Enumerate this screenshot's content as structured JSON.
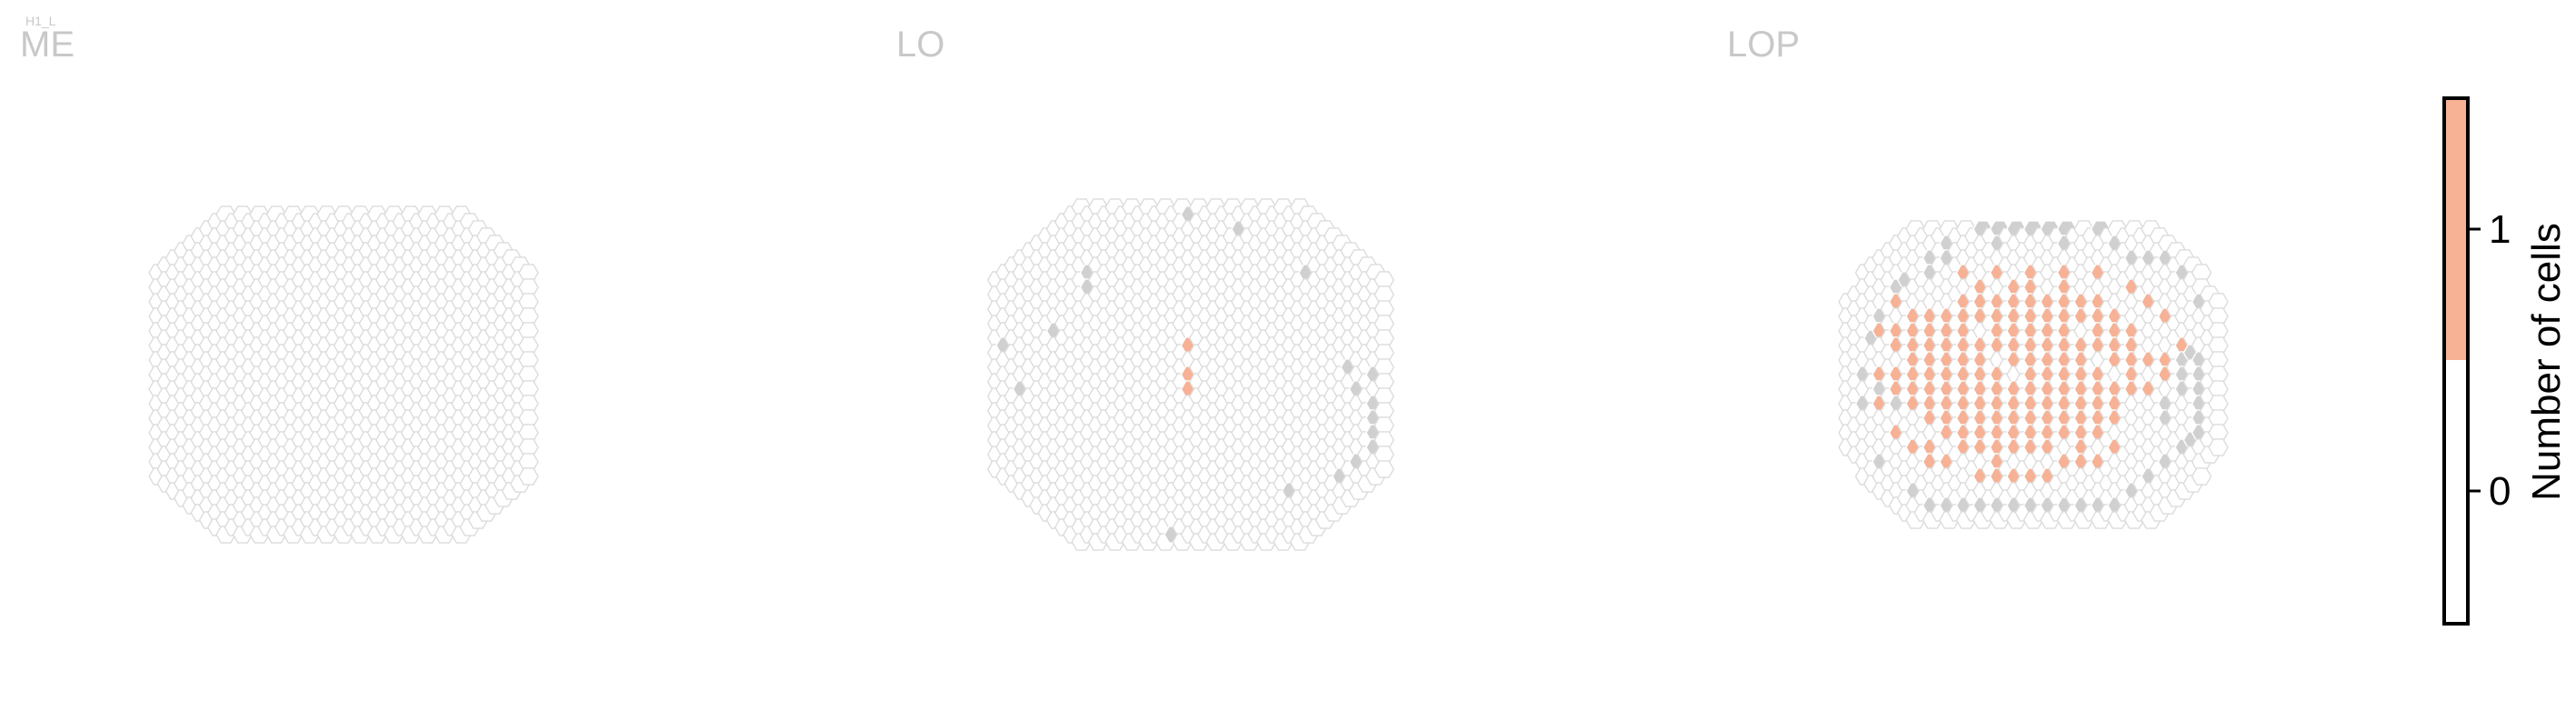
{
  "chart_data": {
    "type": "heatmap",
    "subtitle": "H1_L",
    "panels": [
      {
        "title": "ME",
        "extent": {
          "rmin": -22,
          "rmax": 22,
          "cmin": -22,
          "cmax": 22
        },
        "cutoff": 23.5,
        "gray_cells": [],
        "orange_cells": []
      },
      {
        "title": "LO",
        "extent": {
          "rmin": -23,
          "rmax": 23,
          "cmin": -23,
          "cmax": 23
        },
        "cutoff": 23.5,
        "gray_cells": [
          [
            -22,
            -4
          ],
          [
            -20,
            2
          ],
          [
            -16,
            -6
          ],
          [
            -12,
            -12
          ],
          [
            -12,
            -14
          ],
          [
            0,
            -22
          ],
          [
            6,
            -20
          ],
          [
            14,
            -14
          ],
          [
            19,
            -1
          ],
          [
            20,
            2
          ],
          [
            22,
            0
          ],
          [
            22,
            4
          ],
          [
            22,
            6
          ],
          [
            22,
            8
          ],
          [
            22,
            10
          ],
          [
            20,
            12
          ],
          [
            18,
            14
          ],
          [
            12,
            16
          ],
          [
            -2,
            22
          ]
        ],
        "orange_cells": [
          [
            0,
            -4
          ],
          [
            0,
            0
          ],
          [
            0,
            2
          ]
        ]
      },
      {
        "title": "LOP",
        "extent": {
          "rmin": -20,
          "rmax": 20,
          "cmin": -22,
          "cmax": 22
        },
        "cutoff": 21.8,
        "gray_cells": [
          [
            -20,
            0
          ],
          [
            -20,
            4
          ],
          [
            -19,
            -5
          ],
          [
            -18,
            -8
          ],
          [
            -18,
            2
          ],
          [
            -16,
            -12
          ],
          [
            -16,
            -10
          ],
          [
            -16,
            4
          ],
          [
            -15,
            -13
          ],
          [
            -14,
            -15
          ],
          [
            -14,
            -13
          ],
          [
            -14,
            -11
          ],
          [
            -12,
            -16
          ],
          [
            -12,
            -14
          ],
          [
            -10,
            -16
          ],
          [
            -10,
            -18
          ],
          [
            -6,
            -20
          ],
          [
            -4,
            -18
          ],
          [
            -4,
            -20
          ],
          [
            -2,
            -20
          ],
          [
            0,
            -20
          ],
          [
            2,
            -20
          ],
          [
            4,
            -18
          ],
          [
            4,
            -20
          ],
          [
            8,
            -20
          ],
          [
            10,
            -18
          ],
          [
            12,
            -16
          ],
          [
            14,
            -16
          ],
          [
            16,
            -16
          ],
          [
            18,
            -14
          ],
          [
            20,
            -10
          ],
          [
            -18,
            12
          ],
          [
            -14,
            16
          ],
          [
            -12,
            18
          ],
          [
            -10,
            18
          ],
          [
            -8,
            18
          ],
          [
            -6,
            18
          ],
          [
            -4,
            18
          ],
          [
            -2,
            18
          ],
          [
            0,
            18
          ],
          [
            2,
            18
          ],
          [
            4,
            18
          ],
          [
            6,
            18
          ],
          [
            8,
            18
          ],
          [
            10,
            18
          ],
          [
            12,
            16
          ],
          [
            14,
            14
          ],
          [
            16,
            12
          ],
          [
            18,
            10
          ],
          [
            19,
            9
          ],
          [
            20,
            8
          ],
          [
            20,
            6
          ],
          [
            20,
            4
          ],
          [
            20,
            2
          ],
          [
            20,
            0
          ],
          [
            20,
            -2
          ],
          [
            19,
            -3
          ],
          [
            18,
            -2
          ],
          [
            18,
            0
          ],
          [
            18,
            2
          ],
          [
            16,
            4
          ],
          [
            16,
            6
          ],
          [
            -12,
            -22
          ],
          [
            -12,
            22
          ],
          [
            12,
            -22
          ],
          [
            12,
            22
          ]
        ],
        "orange_cells": [
          [
            -14,
            -6
          ],
          [
            -14,
            -4
          ],
          [
            -14,
            -2
          ],
          [
            -14,
            0
          ],
          [
            -14,
            2
          ],
          [
            -14,
            4
          ],
          [
            -12,
            -8
          ],
          [
            -12,
            -6
          ],
          [
            -12,
            -4
          ],
          [
            -12,
            -2
          ],
          [
            -12,
            0
          ],
          [
            -12,
            2
          ],
          [
            -12,
            4
          ],
          [
            -12,
            6
          ],
          [
            -10,
            -8
          ],
          [
            -10,
            -6
          ],
          [
            -10,
            -2
          ],
          [
            -10,
            0
          ],
          [
            -10,
            2
          ],
          [
            -10,
            4
          ],
          [
            -10,
            6
          ],
          [
            -10,
            8
          ],
          [
            -8,
            -10
          ],
          [
            -8,
            -8
          ],
          [
            -8,
            -6
          ],
          [
            -8,
            -4
          ],
          [
            -8,
            -2
          ],
          [
            -8,
            0
          ],
          [
            -8,
            2
          ],
          [
            -8,
            4
          ],
          [
            -8,
            6
          ],
          [
            -8,
            8
          ],
          [
            -8,
            10
          ],
          [
            -6,
            -12
          ],
          [
            -6,
            -10
          ],
          [
            -6,
            -8
          ],
          [
            -6,
            -4
          ],
          [
            -6,
            -2
          ],
          [
            -6,
            0
          ],
          [
            -6,
            2
          ],
          [
            -6,
            4
          ],
          [
            -6,
            6
          ],
          [
            -6,
            8
          ],
          [
            -6,
            10
          ],
          [
            -4,
            -10
          ],
          [
            -4,
            -8
          ],
          [
            -4,
            -6
          ],
          [
            -4,
            -4
          ],
          [
            -4,
            0
          ],
          [
            -4,
            2
          ],
          [
            -4,
            4
          ],
          [
            -4,
            6
          ],
          [
            -4,
            8
          ],
          [
            -4,
            10
          ],
          [
            -4,
            12
          ],
          [
            -2,
            -12
          ],
          [
            -2,
            -10
          ],
          [
            -2,
            -8
          ],
          [
            -2,
            -6
          ],
          [
            -2,
            -4
          ],
          [
            -2,
            -2
          ],
          [
            -2,
            2
          ],
          [
            -2,
            4
          ],
          [
            -2,
            6
          ],
          [
            -2,
            8
          ],
          [
            -2,
            10
          ],
          [
            0,
            -12
          ],
          [
            0,
            -10
          ],
          [
            0,
            -8
          ],
          [
            0,
            -6
          ],
          [
            0,
            -4
          ],
          [
            0,
            -2
          ],
          [
            0,
            0
          ],
          [
            0,
            2
          ],
          [
            0,
            4
          ],
          [
            0,
            6
          ],
          [
            0,
            8
          ],
          [
            0,
            10
          ],
          [
            2,
            -10
          ],
          [
            2,
            -8
          ],
          [
            2,
            -6
          ],
          [
            2,
            -4
          ],
          [
            2,
            -2
          ],
          [
            2,
            0
          ],
          [
            2,
            2
          ],
          [
            2,
            4
          ],
          [
            2,
            6
          ],
          [
            2,
            8
          ],
          [
            2,
            10
          ],
          [
            4,
            -12
          ],
          [
            4,
            -10
          ],
          [
            4,
            -8
          ],
          [
            4,
            -6
          ],
          [
            4,
            -4
          ],
          [
            4,
            -2
          ],
          [
            4,
            0
          ],
          [
            4,
            2
          ],
          [
            4,
            4
          ],
          [
            4,
            6
          ],
          [
            4,
            8
          ],
          [
            6,
            -10
          ],
          [
            6,
            -8
          ],
          [
            6,
            -4
          ],
          [
            6,
            -2
          ],
          [
            6,
            0
          ],
          [
            6,
            2
          ],
          [
            6,
            4
          ],
          [
            6,
            6
          ],
          [
            6,
            8
          ],
          [
            8,
            -10
          ],
          [
            8,
            -8
          ],
          [
            8,
            -6
          ],
          [
            8,
            -4
          ],
          [
            8,
            0
          ],
          [
            8,
            2
          ],
          [
            8,
            4
          ],
          [
            8,
            6
          ],
          [
            8,
            8
          ],
          [
            10,
            -8
          ],
          [
            10,
            -6
          ],
          [
            10,
            -4
          ],
          [
            10,
            -2
          ],
          [
            10,
            2
          ],
          [
            10,
            4
          ],
          [
            10,
            6
          ],
          [
            12,
            -6
          ],
          [
            12,
            -4
          ],
          [
            12,
            -2
          ],
          [
            12,
            0
          ],
          [
            12,
            2
          ],
          [
            14,
            -2
          ],
          [
            14,
            2
          ],
          [
            -16,
            -6
          ],
          [
            -16,
            -4
          ],
          [
            -16,
            0
          ],
          [
            -16,
            2
          ],
          [
            16,
            -2
          ],
          [
            16,
            0
          ],
          [
            -12,
            10
          ],
          [
            -12,
            12
          ],
          [
            -10,
            12
          ],
          [
            -6,
            14
          ],
          [
            -4,
            14
          ],
          [
            -2,
            14
          ],
          [
            0,
            14
          ],
          [
            2,
            14
          ],
          [
            4,
            12
          ],
          [
            6,
            12
          ],
          [
            8,
            12
          ],
          [
            10,
            10
          ],
          [
            -14,
            -8
          ],
          [
            -16,
            -10
          ],
          [
            -18,
            -6
          ],
          [
            -18,
            0
          ],
          [
            -18,
            4
          ],
          [
            -16,
            8
          ],
          [
            -14,
            10
          ],
          [
            -8,
            -14
          ],
          [
            -4,
            -14
          ],
          [
            0,
            -14
          ],
          [
            4,
            -14
          ],
          [
            8,
            -14
          ],
          [
            12,
            -12
          ],
          [
            14,
            -10
          ],
          [
            16,
            -8
          ],
          [
            18,
            -4
          ],
          [
            6,
            10
          ],
          [
            -10,
            -4
          ]
        ]
      }
    ],
    "colorbar": {
      "label": "Number of cells",
      "ticks": [
        0,
        1
      ],
      "range": [
        -0.5,
        1.5
      ],
      "colors": {
        "zero": "#ffffff",
        "one": "#f7b195"
      }
    },
    "colors": {
      "empty_stroke": "#dcdcdc",
      "gray_fill": "#d0d0d0",
      "orange_fill": "#f7b195"
    }
  }
}
